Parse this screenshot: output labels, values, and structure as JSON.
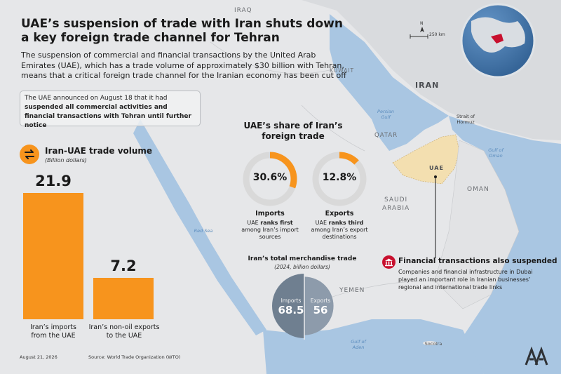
{
  "title": "UAE’s suspension of trade with Iran shuts down a key foreign trade channel for Tehran",
  "subtitle": "The suspension of commercial and financial transactions by the United Arab Emirates (UAE), which has a trade volume of approximately $30 billion with Tehran, means that a critical foreign trade channel for the Iranian economy has been cut off",
  "notice": {
    "line1": "The UAE announced on August 18 that it had",
    "bold": "suspended all commercial activities and financial transactions with Tehran until further notice"
  },
  "trade_volume": {
    "title": "Iran-UAE trade volume",
    "unit": "(Billion dollars)",
    "icon": "exchange-arrows-icon",
    "bars": [
      {
        "value": "21.9",
        "number": 21.9,
        "label_line1": "Iran’s imports",
        "label_line2": "from the UAE"
      },
      {
        "value": "7.2",
        "number": 7.2,
        "label_line1": "Iran’s non-oil exports",
        "label_line2": "to the UAE"
      }
    ]
  },
  "share": {
    "title_line1": "UAE’s share of Iran’s",
    "title_line2": "foreign trade",
    "items": [
      {
        "value": "30.6%",
        "fraction": 0.306,
        "head": "Imports",
        "pre": "UAE ",
        "bold": "ranks first",
        "line2": "among Iran’s import",
        "line3": "sources"
      },
      {
        "value": "12.8%",
        "fraction": 0.128,
        "head": "Exports",
        "pre": "UAE ",
        "bold": "ranks third",
        "line2": "among Iran’s export",
        "line3": "destinations"
      }
    ]
  },
  "merchandise": {
    "title": "Iran’s total merchandise trade",
    "sub": "(2024, billion dollars)",
    "imports_label": "Imports",
    "imports_value": "68.5",
    "imports_number": 68.5,
    "exports_label": "Exports",
    "exports_value": "56",
    "exports_number": 56
  },
  "financial": {
    "title": "Financial transactions also suspended",
    "body": "Companies and financial infrastructure in Dubai played an important role in Iranian businesses’ regional and international trade links",
    "icon": "bank-icon"
  },
  "map": {
    "labels": {
      "iraq": "IRAQ",
      "kuwait": "KUWAIT",
      "iran": "IRAN",
      "qatar": "QATAR",
      "uae": "UAE",
      "saudi1": "SAUDI",
      "saudi2": "ARABIA",
      "oman": "OMAN",
      "yemen": "YEMEN"
    },
    "seas": {
      "persian1": "Persian",
      "persian2": "Gulf",
      "hormuz1": "Strait of",
      "hormuz2": "Hormuz",
      "oman1": "Gulf of",
      "oman2": "Oman",
      "redsea": "Red Sea",
      "aden1": "Gulf of",
      "aden2": "Aden",
      "socotra": "Socotra"
    },
    "scale": "250 km",
    "north": "N",
    "colors": {
      "land": "#e4e5e7",
      "sea": "#a9c6e2",
      "uae": "#f3dfb0",
      "iran": "#d7d9dc"
    }
  },
  "footer": {
    "date": "August 21, 2026",
    "source": "Source: World Trade Organization (WTO)",
    "logo": "AA"
  },
  "colors": {
    "accent": "#f7941d",
    "ring": "#d9d9d9",
    "red": "#c8102e",
    "slate": "#7b8a9a"
  }
}
